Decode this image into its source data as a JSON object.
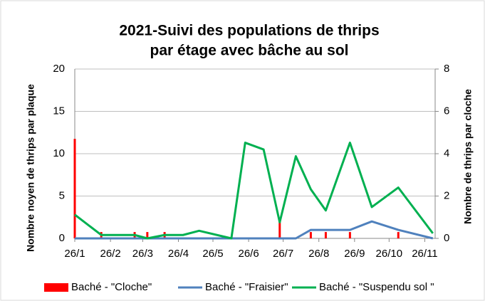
{
  "chart_data": {
    "type": "combo",
    "title": [
      "2021-Suivi des populations de thrips",
      "par étage avec bâche au sol"
    ],
    "ylabel": "Nombre  noyen de thrips  par plaque",
    "y2label": "Nombre de thrips par cloche",
    "x": [
      "2021-01-26",
      "2021-02-18",
      "2021-03-19",
      "2021-03-30",
      "2021-04-14",
      "2021-04-30",
      "2021-05-14",
      "2021-06-11",
      "2021-06-23",
      "2021-07-09",
      "2021-07-23",
      "2021-08-06",
      "2021-08-19",
      "2021-09-01",
      "2021-09-22",
      "2021-10-11",
      "2021-11-03",
      "2021-12-03"
    ],
    "xlim": [
      "2021-01-26",
      "2021-12-05"
    ],
    "xticks": [
      {
        "value": "2021-01-26",
        "label": "26/1"
      },
      {
        "value": "2021-02-26",
        "label": "26/2"
      },
      {
        "value": "2021-03-26",
        "label": "26/3"
      },
      {
        "value": "2021-04-26",
        "label": "26/4"
      },
      {
        "value": "2021-05-26",
        "label": "26/5"
      },
      {
        "value": "2021-06-26",
        "label": "26/6"
      },
      {
        "value": "2021-07-26",
        "label": "26/7"
      },
      {
        "value": "2021-08-26",
        "label": "26/8"
      },
      {
        "value": "2021-09-26",
        "label": "26/9"
      },
      {
        "value": "2021-10-26",
        "label": "26/10"
      },
      {
        "value": "2021-11-26",
        "label": "26/11"
      }
    ],
    "ylim": [
      0,
      20
    ],
    "yticks": [
      0,
      5,
      10,
      15,
      20
    ],
    "y2lim": [
      0,
      8
    ],
    "y2ticks": [
      0,
      2,
      4,
      6,
      8
    ],
    "grid": true,
    "legend": "bottom",
    "series": [
      {
        "name": "Baché - \"Cloche\"",
        "type": "bar",
        "axis": "y2",
        "color": "#ff0000",
        "values": [
          4.7,
          0.3,
          0.3,
          0.3,
          0.3,
          0,
          0,
          0,
          0,
          0,
          0.8,
          0,
          0.3,
          0.3,
          0.3,
          0,
          0.3,
          0
        ]
      },
      {
        "name": "Baché - \"Fraisier\"",
        "type": "line",
        "color": "#4f81bd",
        "values": [
          0,
          0,
          0,
          0,
          0,
          0,
          0,
          0,
          0,
          0,
          0,
          0,
          1,
          1,
          1,
          2,
          1,
          0
        ]
      },
      {
        "name": "Baché - \"Suspendu sol \"",
        "type": "line",
        "color": "#00b050",
        "values": [
          2.8,
          0.4,
          0.4,
          0,
          0.4,
          0.4,
          0.9,
          0,
          11.3,
          10.5,
          1.9,
          9.7,
          5.8,
          3.3,
          11.3,
          3.7,
          6.0,
          0.6
        ]
      }
    ]
  }
}
